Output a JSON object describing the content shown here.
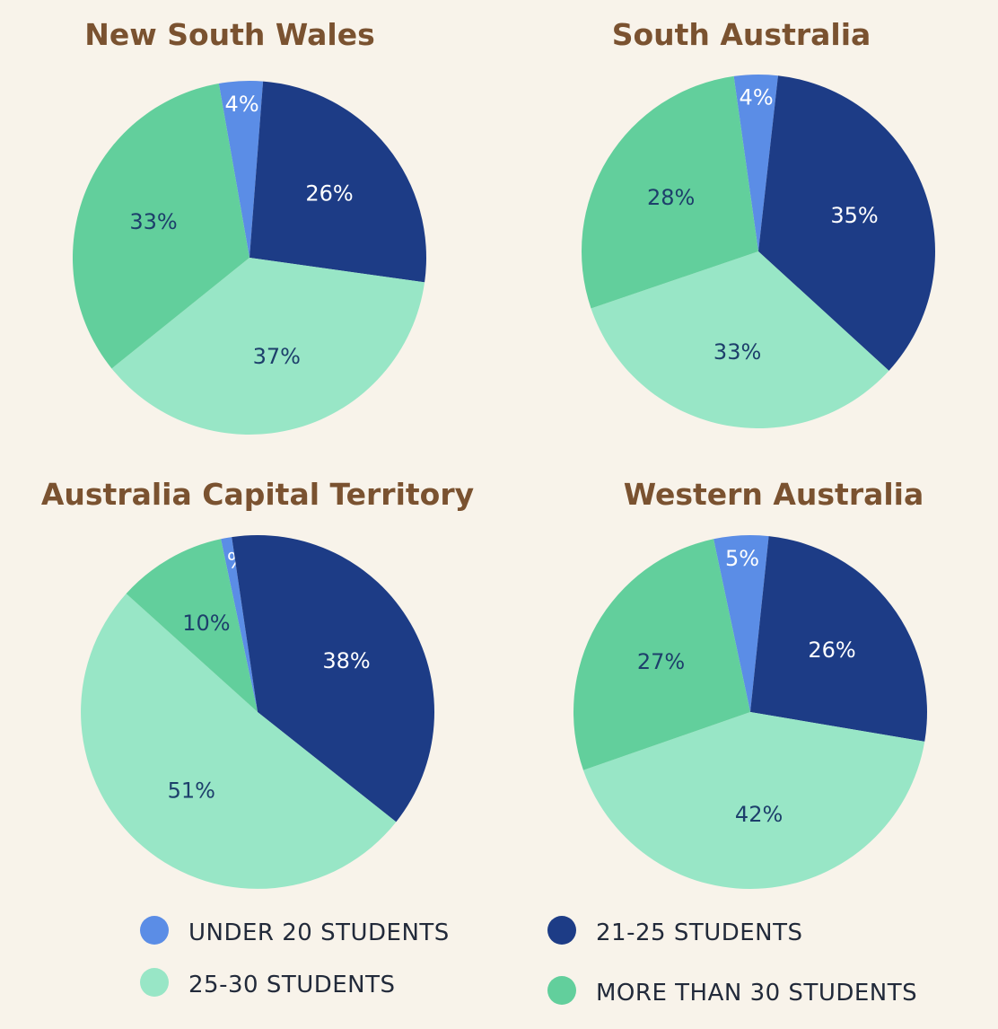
{
  "chart_data": [
    {
      "type": "pie",
      "title": "New South Wales",
      "slices": [
        {
          "category": "under20",
          "value": 4
        },
        {
          "category": "s21_25",
          "value": 26
        },
        {
          "category": "s25_30",
          "value": 37
        },
        {
          "category": "over30",
          "value": 33
        }
      ]
    },
    {
      "type": "pie",
      "title": "South Australia",
      "slices": [
        {
          "category": "under20",
          "value": 4
        },
        {
          "category": "s21_25",
          "value": 35
        },
        {
          "category": "s25_30",
          "value": 33
        },
        {
          "category": "over30",
          "value": 28
        }
      ]
    },
    {
      "type": "pie",
      "title": "Australia Capital Territory",
      "slices": [
        {
          "category": "under20",
          "value": 1
        },
        {
          "category": "s21_25",
          "value": 38
        },
        {
          "category": "s25_30",
          "value": 51
        },
        {
          "category": "over30",
          "value": 10
        }
      ]
    },
    {
      "type": "pie",
      "title": "Western Australia",
      "slices": [
        {
          "category": "under20",
          "value": 5
        },
        {
          "category": "s21_25",
          "value": 26
        },
        {
          "category": "s25_30",
          "value": 42
        },
        {
          "category": "over30",
          "value": 27
        }
      ]
    }
  ],
  "legend": [
    {
      "key": "under20",
      "label": "UNDER 20 STUDENTS",
      "color": "#5b8de6"
    },
    {
      "key": "s21_25",
      "label": "21-25 STUDENTS",
      "color": "#1d3c86"
    },
    {
      "key": "s25_30",
      "label": "25-30 STUDENTS",
      "color": "#98e6c6"
    },
    {
      "key": "over30",
      "label": "MORE THAN 30 STUDENTS",
      "color": "#62cf9c"
    }
  ],
  "label_colors": {
    "under20": "#ffffff",
    "s21_25": "#ffffff",
    "s25_30": "#1d3f6b",
    "over30": "#1d3f6b"
  },
  "value_suffix": "%"
}
